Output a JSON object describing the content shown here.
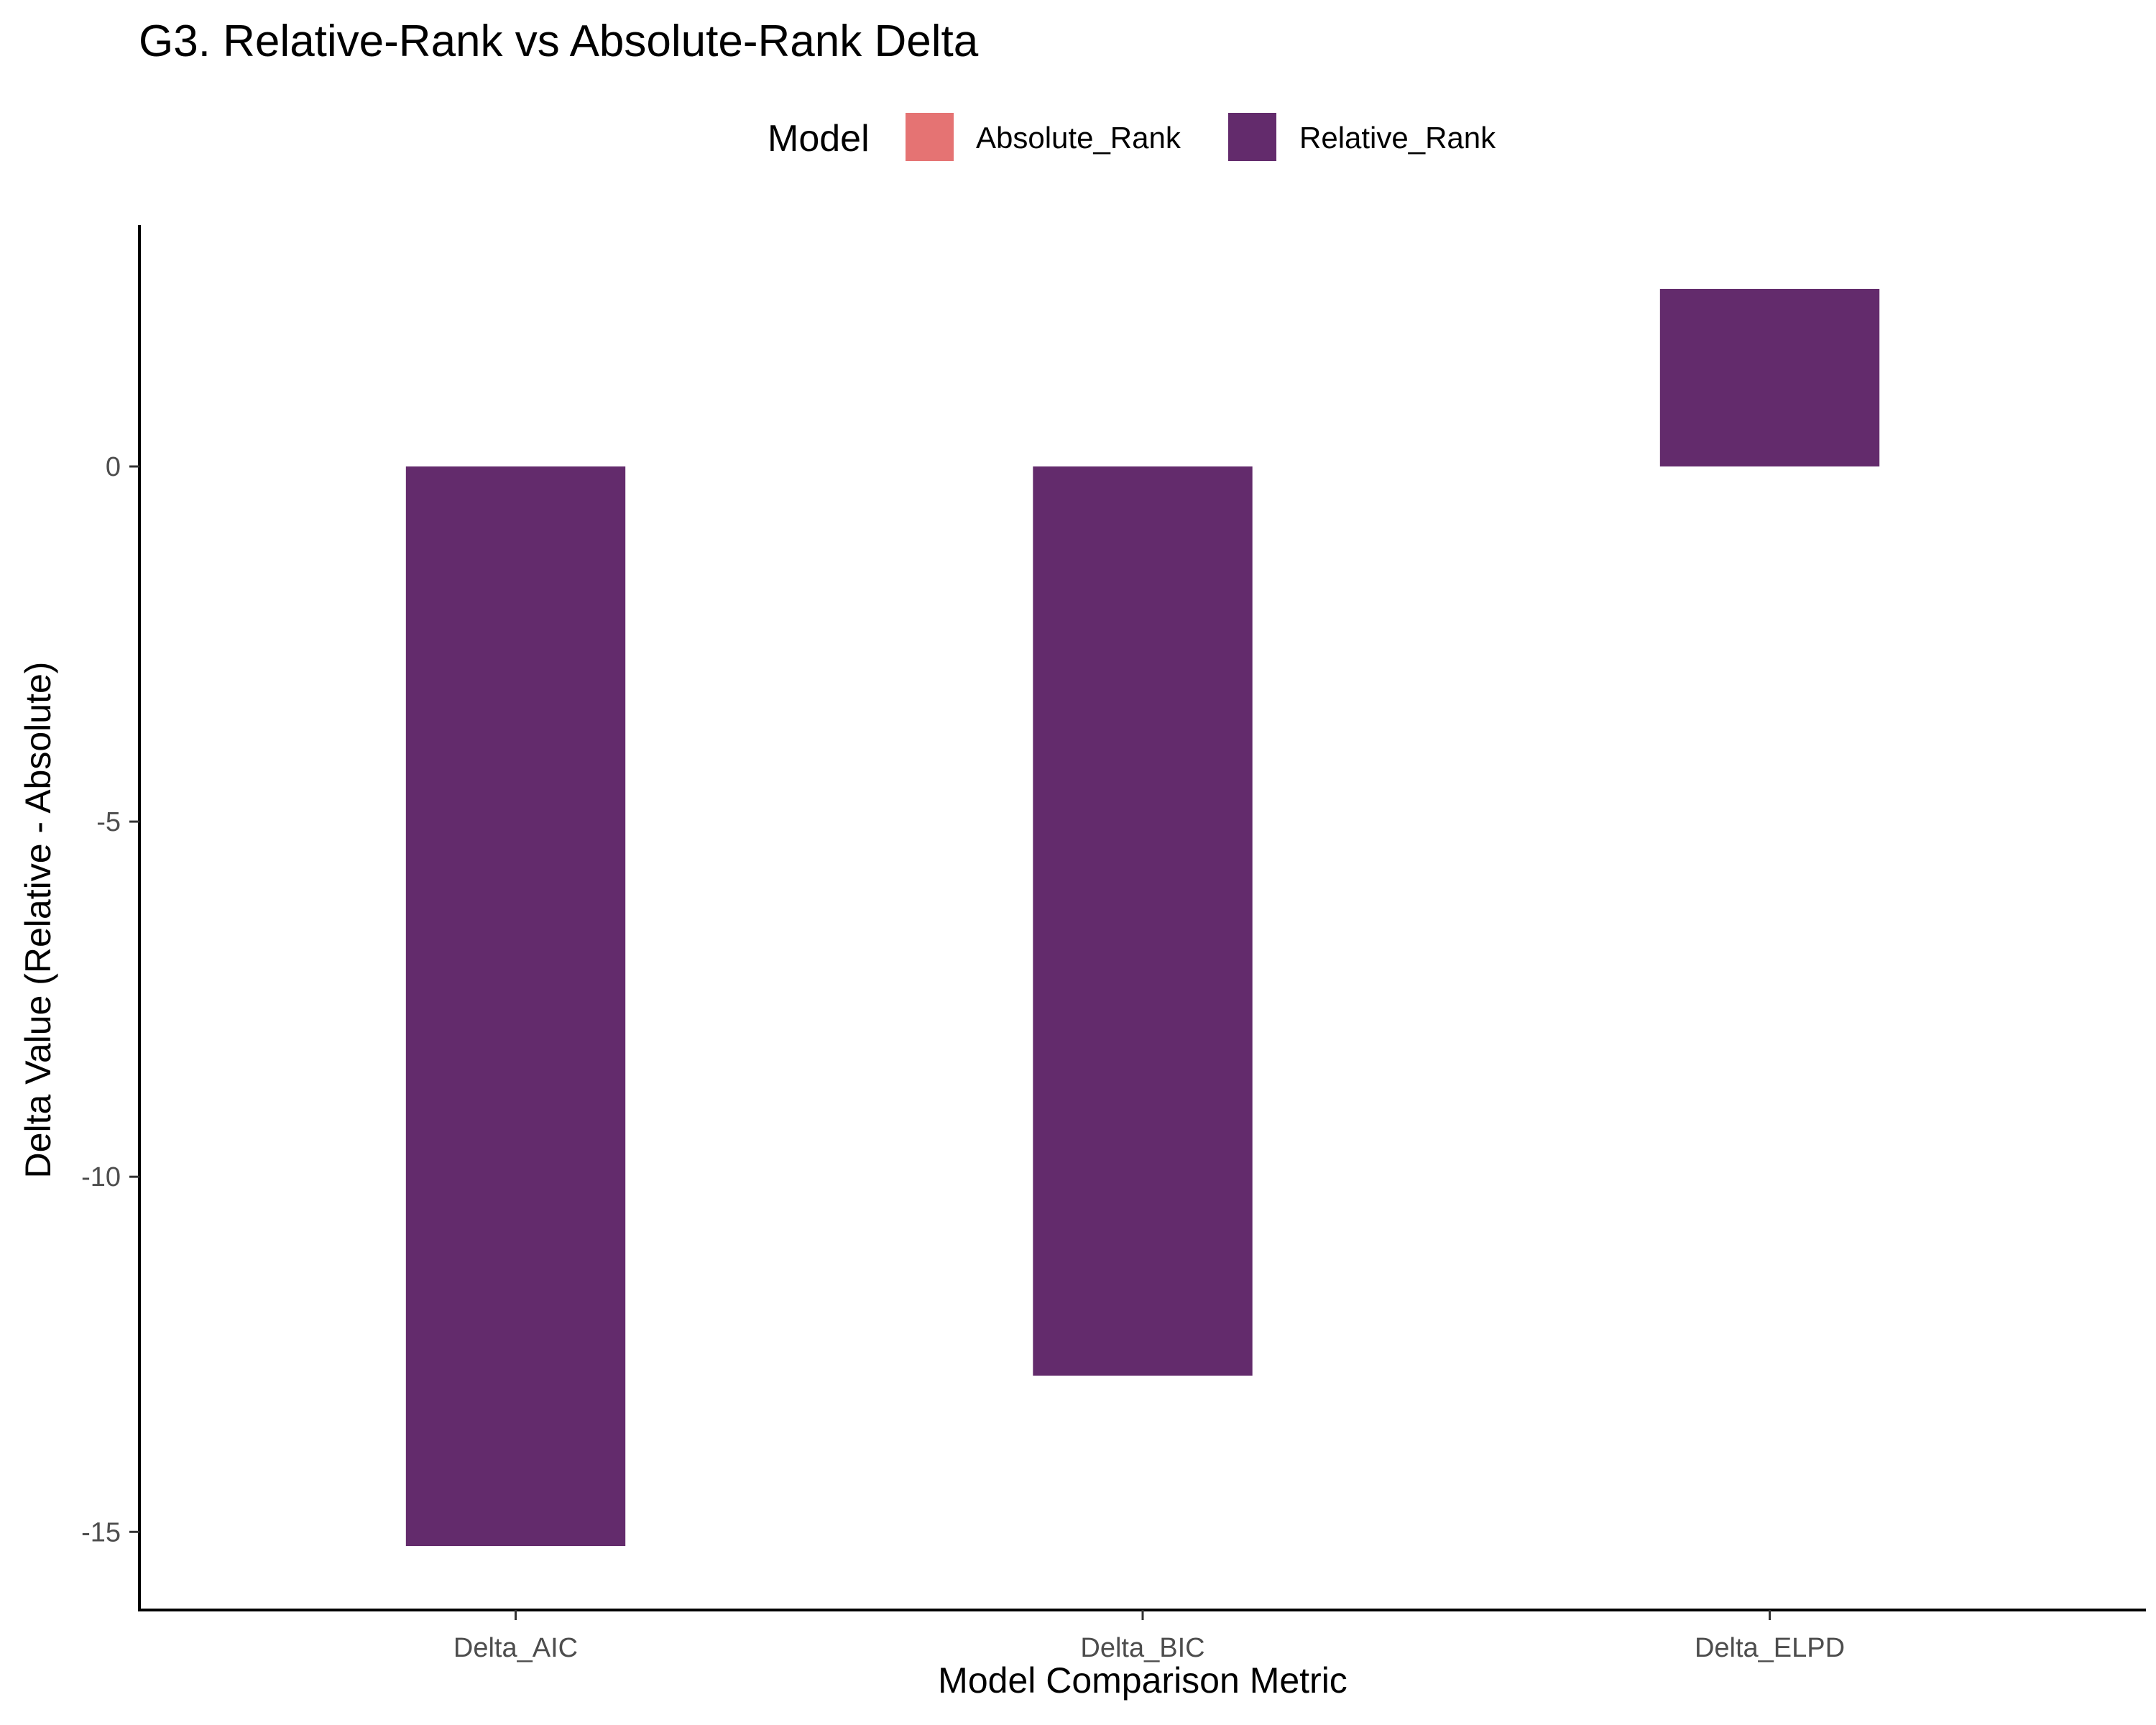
{
  "chart_data": {
    "type": "bar",
    "title": "G3. Relative-Rank vs Absolute-Rank Delta",
    "xlabel": "Model Comparison Metric",
    "ylabel": "Delta Value (Relative - Absolute)",
    "categories": [
      "Delta_AIC",
      "Delta_BIC",
      "Delta_ELPD"
    ],
    "series": [
      {
        "name": "Absolute_Rank",
        "color": "#e57373",
        "values": [
          null,
          null,
          null
        ]
      },
      {
        "name": "Relative_Rank",
        "color": "#632b6c",
        "values": [
          -15.2,
          -12.8,
          2.5
        ]
      }
    ],
    "legend": {
      "title": "Model",
      "position": "top"
    },
    "ylim": [
      -16.1,
      3.4
    ],
    "yticks": [
      0,
      -5,
      -10,
      -15
    ],
    "ytick_labels": [
      "0",
      "-5",
      "-10",
      "-15"
    ],
    "grid": false
  }
}
